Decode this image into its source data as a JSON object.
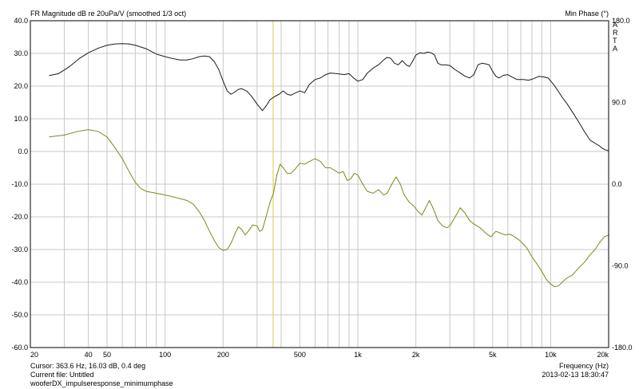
{
  "chart_data": {
    "type": "line",
    "title": "FR Magnitude dB re 20uPa/V (smoothed 1/3 oct)",
    "ylabel_right": "Min Phase (°)",
    "xlabel": "Frequency (Hz)",
    "watermark": "ARTA",
    "x_scale": "log",
    "xlim": [
      20,
      20000
    ],
    "ylim_left": [
      -60,
      40
    ],
    "ylim_right": [
      -180,
      180
    ],
    "grid": true,
    "x_tick_labels": [
      {
        "v": 20,
        "t": "20"
      },
      {
        "v": 50,
        "t": "50"
      },
      {
        "v": 100,
        "t": "100"
      },
      {
        "v": 200,
        "t": "200"
      },
      {
        "v": 500,
        "t": "500"
      },
      {
        "v": 1000,
        "t": "1k"
      },
      {
        "v": 2000,
        "t": "2k"
      },
      {
        "v": 5000,
        "t": "5k"
      },
      {
        "v": 10000,
        "t": "10k"
      },
      {
        "v": 20000,
        "t": "20k"
      }
    ],
    "extra_x_tick_labels": [
      {
        "v": 40,
        "t": "40"
      }
    ],
    "y_left_ticks": [
      {
        "v": 40,
        "t": "40.0"
      },
      {
        "v": 30,
        "t": "30.0"
      },
      {
        "v": 20,
        "t": "20.0"
      },
      {
        "v": 10,
        "t": "10.0"
      },
      {
        "v": 0,
        "t": "0.0"
      },
      {
        "v": -10,
        "t": "-10.0"
      },
      {
        "v": -20,
        "t": "-20.0"
      },
      {
        "v": -30,
        "t": "-30.0"
      },
      {
        "v": -40,
        "t": "-40.0"
      },
      {
        "v": -50,
        "t": "-50.0"
      },
      {
        "v": -60,
        "t": "-60.0"
      }
    ],
    "y_right_ticks": [
      {
        "v": 180,
        "t": "180.0"
      },
      {
        "v": 90,
        "t": "90.0"
      },
      {
        "v": 0,
        "t": "0.0"
      },
      {
        "v": -90,
        "t": "-90.0"
      },
      {
        "v": -180,
        "t": "-180.0"
      }
    ],
    "cursor_x": 363.6,
    "series": [
      {
        "axis": "left",
        "color": "#1a1a1a",
        "points": [
          [
            25,
            23.2
          ],
          [
            28,
            23.8
          ],
          [
            32,
            26.0
          ],
          [
            36,
            28.5
          ],
          [
            40,
            30.2
          ],
          [
            45,
            31.6
          ],
          [
            50,
            32.5
          ],
          [
            55,
            32.9
          ],
          [
            60,
            33.0
          ],
          [
            65,
            32.9
          ],
          [
            70,
            32.5
          ],
          [
            80,
            31.4
          ],
          [
            90,
            29.8
          ],
          [
            100,
            29.0
          ],
          [
            110,
            28.4
          ],
          [
            120,
            28.0
          ],
          [
            130,
            28.0
          ],
          [
            140,
            28.4
          ],
          [
            150,
            29.0
          ],
          [
            160,
            29.2
          ],
          [
            170,
            29.0
          ],
          [
            180,
            27.5
          ],
          [
            190,
            25.0
          ],
          [
            200,
            21.5
          ],
          [
            210,
            18.5
          ],
          [
            220,
            17.5
          ],
          [
            230,
            18.2
          ],
          [
            240,
            19.0
          ],
          [
            250,
            19.2
          ],
          [
            265,
            18.5
          ],
          [
            280,
            17.0
          ],
          [
            300,
            14.5
          ],
          [
            320,
            12.5
          ],
          [
            335,
            14.0
          ],
          [
            350,
            15.8
          ],
          [
            370,
            16.8
          ],
          [
            390,
            17.5
          ],
          [
            410,
            18.5
          ],
          [
            430,
            17.5
          ],
          [
            450,
            17.2
          ],
          [
            470,
            17.8
          ],
          [
            500,
            18.5
          ],
          [
            530,
            18.0
          ],
          [
            560,
            20.5
          ],
          [
            600,
            22.0
          ],
          [
            640,
            22.5
          ],
          [
            680,
            23.5
          ],
          [
            720,
            24.0
          ],
          [
            780,
            23.8
          ],
          [
            850,
            23.5
          ],
          [
            900,
            23.8
          ],
          [
            950,
            22.5
          ],
          [
            1000,
            21.5
          ],
          [
            1060,
            22.0
          ],
          [
            1120,
            24.0
          ],
          [
            1200,
            25.5
          ],
          [
            1280,
            26.5
          ],
          [
            1360,
            28.0
          ],
          [
            1420,
            28.8
          ],
          [
            1480,
            28.5
          ],
          [
            1550,
            27.0
          ],
          [
            1620,
            26.5
          ],
          [
            1700,
            27.8
          ],
          [
            1780,
            26.5
          ],
          [
            1850,
            26.0
          ],
          [
            1920,
            27.5
          ],
          [
            2000,
            29.5
          ],
          [
            2100,
            30.2
          ],
          [
            2200,
            30.0
          ],
          [
            2300,
            30.4
          ],
          [
            2400,
            30.2
          ],
          [
            2500,
            29.5
          ],
          [
            2600,
            27.0
          ],
          [
            2700,
            26.5
          ],
          [
            2850,
            26.5
          ],
          [
            3000,
            26.3
          ],
          [
            3200,
            25.0
          ],
          [
            3400,
            24.0
          ],
          [
            3600,
            23.0
          ],
          [
            3800,
            22.5
          ],
          [
            4000,
            23.5
          ],
          [
            4200,
            26.5
          ],
          [
            4400,
            27.0
          ],
          [
            4600,
            26.8
          ],
          [
            4800,
            26.5
          ],
          [
            5000,
            24.5
          ],
          [
            5200,
            23.0
          ],
          [
            5400,
            22.5
          ],
          [
            5700,
            23.3
          ],
          [
            6000,
            23.5
          ],
          [
            6300,
            22.8
          ],
          [
            6700,
            22.0
          ],
          [
            7200,
            22.0
          ],
          [
            7700,
            21.8
          ],
          [
            8200,
            22.3
          ],
          [
            8700,
            23.0
          ],
          [
            9200,
            22.8
          ],
          [
            9700,
            22.5
          ],
          [
            10200,
            21.0
          ],
          [
            10800,
            19.0
          ],
          [
            11500,
            16.5
          ],
          [
            12200,
            14.5
          ],
          [
            13000,
            12.0
          ],
          [
            14000,
            9.0
          ],
          [
            15000,
            6.0
          ],
          [
            16000,
            3.5
          ],
          [
            17000,
            2.5
          ],
          [
            17800,
            1.8
          ],
          [
            18500,
            1.0
          ],
          [
            19200,
            0.5
          ],
          [
            20000,
            0.2
          ]
        ]
      },
      {
        "axis": "right",
        "color": "#7a8a1a",
        "points": [
          [
            25,
            52.0
          ],
          [
            30,
            54.0
          ],
          [
            35,
            58.0
          ],
          [
            40,
            60.0
          ],
          [
            45,
            58.0
          ],
          [
            50,
            52.0
          ],
          [
            55,
            40.0
          ],
          [
            60,
            28.0
          ],
          [
            65,
            14.0
          ],
          [
            70,
            2.0
          ],
          [
            75,
            -5.0
          ],
          [
            80,
            -8.0
          ],
          [
            90,
            -10.0
          ],
          [
            100,
            -12.0
          ],
          [
            110,
            -14.0
          ],
          [
            120,
            -16.0
          ],
          [
            130,
            -18.0
          ],
          [
            140,
            -22.0
          ],
          [
            150,
            -30.0
          ],
          [
            160,
            -40.0
          ],
          [
            170,
            -52.0
          ],
          [
            180,
            -62.0
          ],
          [
            190,
            -70.0
          ],
          [
            200,
            -73.0
          ],
          [
            210,
            -72.0
          ],
          [
            220,
            -65.0
          ],
          [
            230,
            -55.0
          ],
          [
            240,
            -47.0
          ],
          [
            250,
            -50.0
          ],
          [
            260,
            -56.0
          ],
          [
            270,
            -52.0
          ],
          [
            285,
            -45.0
          ],
          [
            300,
            -46.0
          ],
          [
            310,
            -52.0
          ],
          [
            320,
            -50.0
          ],
          [
            335,
            -35.0
          ],
          [
            350,
            -20.0
          ],
          [
            365,
            -10.0
          ],
          [
            380,
            10.0
          ],
          [
            395,
            22.0
          ],
          [
            410,
            18.0
          ],
          [
            430,
            12.0
          ],
          [
            450,
            12.0
          ],
          [
            470,
            16.0
          ],
          [
            500,
            23.0
          ],
          [
            530,
            22.0
          ],
          [
            560,
            25.0
          ],
          [
            600,
            28.0
          ],
          [
            640,
            25.0
          ],
          [
            680,
            18.0
          ],
          [
            720,
            18.0
          ],
          [
            760,
            15.0
          ],
          [
            800,
            12.0
          ],
          [
            840,
            14.0
          ],
          [
            880,
            4.0
          ],
          [
            920,
            6.0
          ],
          [
            960,
            12.0
          ],
          [
            1000,
            10.0
          ],
          [
            1060,
            0.0
          ],
          [
            1120,
            -8.0
          ],
          [
            1200,
            -10.0
          ],
          [
            1280,
            -6.0
          ],
          [
            1360,
            -12.0
          ],
          [
            1420,
            -10.0
          ],
          [
            1500,
            0.0
          ],
          [
            1580,
            8.0
          ],
          [
            1660,
            0.0
          ],
          [
            1740,
            -12.0
          ],
          [
            1850,
            -20.0
          ],
          [
            1950,
            -24.0
          ],
          [
            2050,
            -30.0
          ],
          [
            2150,
            -34.0
          ],
          [
            2250,
            -26.0
          ],
          [
            2350,
            -18.0
          ],
          [
            2450,
            -26.0
          ],
          [
            2600,
            -40.0
          ],
          [
            2750,
            -46.0
          ],
          [
            2900,
            -48.0
          ],
          [
            3000,
            -46.0
          ],
          [
            3200,
            -36.0
          ],
          [
            3400,
            -26.0
          ],
          [
            3600,
            -32.0
          ],
          [
            3800,
            -40.0
          ],
          [
            4000,
            -44.0
          ],
          [
            4300,
            -48.0
          ],
          [
            4600,
            -54.0
          ],
          [
            4900,
            -58.0
          ],
          [
            5200,
            -52.0
          ],
          [
            5500,
            -54.0
          ],
          [
            5800,
            -56.0
          ],
          [
            6100,
            -55.0
          ],
          [
            6400,
            -57.0
          ],
          [
            6700,
            -60.0
          ],
          [
            7000,
            -63.0
          ],
          [
            7500,
            -70.0
          ],
          [
            8000,
            -80.0
          ],
          [
            8500,
            -88.0
          ],
          [
            9000,
            -96.0
          ],
          [
            9500,
            -105.0
          ],
          [
            10000,
            -110.0
          ],
          [
            10500,
            -113.0
          ],
          [
            11000,
            -112.0
          ],
          [
            11500,
            -108.0
          ],
          [
            12000,
            -104.0
          ],
          [
            13000,
            -100.0
          ],
          [
            14000,
            -92.0
          ],
          [
            15000,
            -86.0
          ],
          [
            16000,
            -78.0
          ],
          [
            17000,
            -72.0
          ],
          [
            18000,
            -64.0
          ],
          [
            19000,
            -58.0
          ],
          [
            20000,
            -56.0
          ]
        ]
      }
    ]
  },
  "status": {
    "cursor": "Cursor: 363.6 Hz, 16.03 dB, 0.4 deg",
    "current_file": "Current file: Untitled",
    "file_name": "wooferDX_impulseresponse_minimumphase",
    "timestamp": "2013-02-13  18:30:47"
  }
}
